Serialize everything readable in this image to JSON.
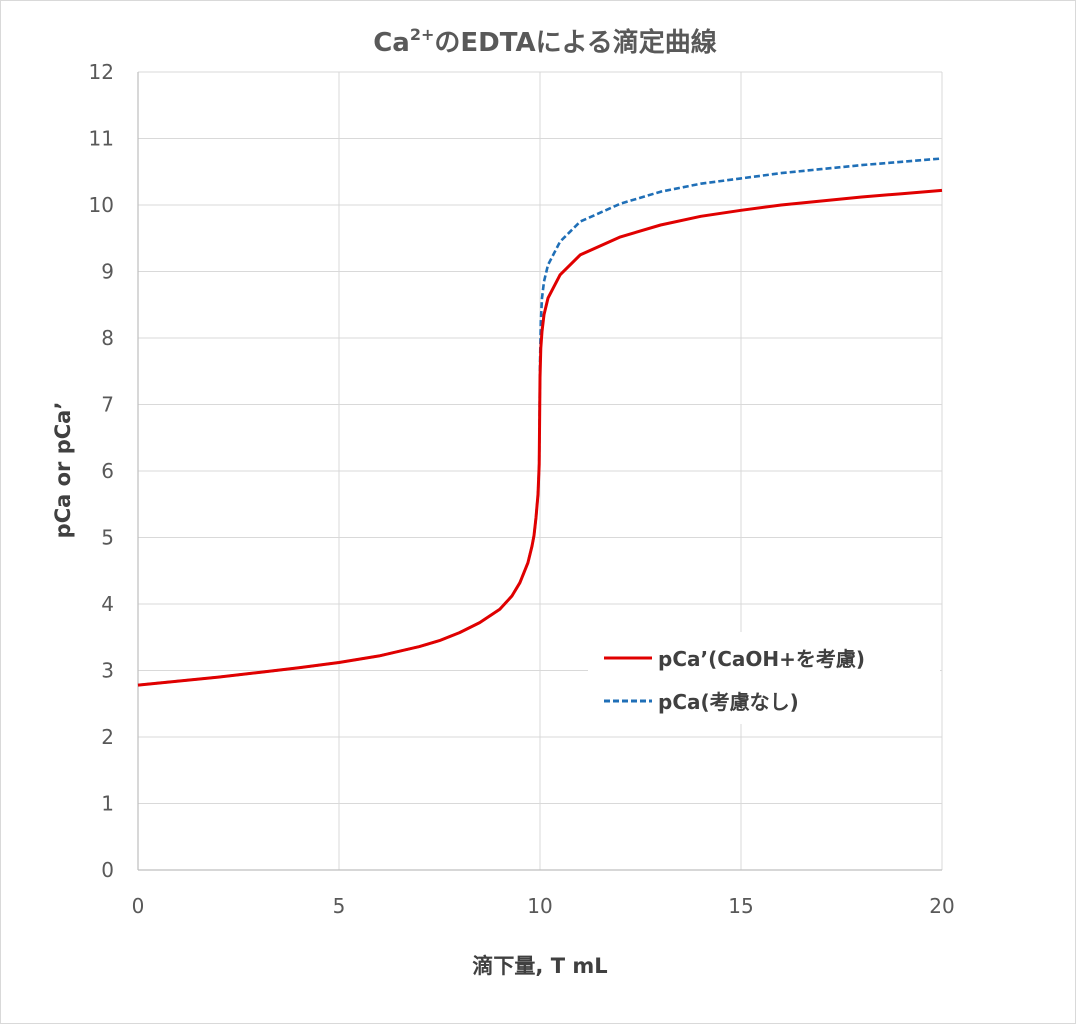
{
  "chart_data": {
    "type": "line",
    "title_main": "Ca",
    "title_sup": "2+",
    "title_rest": "のEDTAによる滴定曲線",
    "xlabel": "滴下量, T mL",
    "ylabel": "pCa or pCa’",
    "xlim": [
      0,
      20
    ],
    "ylim": [
      0,
      12
    ],
    "xticks": [
      "0",
      "5",
      "10",
      "15",
      "20"
    ],
    "yticks": [
      "0",
      "1",
      "2",
      "3",
      "4",
      "5",
      "6",
      "7",
      "8",
      "9",
      "10",
      "11",
      "12"
    ],
    "grid": true,
    "legend_position": "right-middle",
    "series": [
      {
        "name": "pCa’(CaOH+を考慮)",
        "color": "#e00000",
        "dash": "solid",
        "x": [
          0,
          1,
          2,
          3,
          4,
          5,
          6,
          7,
          7.5,
          8,
          8.5,
          9,
          9.3,
          9.5,
          9.7,
          9.8,
          9.85,
          9.9,
          9.95,
          9.98,
          10.0,
          10.02,
          10.05,
          10.1,
          10.2,
          10.5,
          11,
          12,
          13,
          14,
          15,
          16,
          17,
          18,
          19,
          20
        ],
        "values": [
          2.78,
          2.84,
          2.9,
          2.97,
          3.04,
          3.12,
          3.22,
          3.36,
          3.45,
          3.57,
          3.72,
          3.92,
          4.12,
          4.32,
          4.62,
          4.87,
          5.03,
          5.3,
          5.65,
          6.1,
          7.4,
          7.85,
          8.1,
          8.35,
          8.6,
          8.95,
          9.25,
          9.52,
          9.7,
          9.83,
          9.92,
          10.0,
          10.06,
          10.12,
          10.17,
          10.22
        ]
      },
      {
        "name": "pCa(考慮なし)",
        "color": "#1f6fb7",
        "dash": "dashed",
        "x": [
          0,
          1,
          2,
          3,
          4,
          5,
          6,
          7,
          7.5,
          8,
          8.5,
          9,
          9.3,
          9.5,
          9.7,
          9.8,
          9.85,
          9.9,
          9.95,
          9.98,
          10.0,
          10.02,
          10.05,
          10.1,
          10.2,
          10.5,
          11,
          12,
          13,
          14,
          15,
          16,
          17,
          18,
          19,
          20
        ],
        "values": [
          2.78,
          2.84,
          2.9,
          2.97,
          3.04,
          3.12,
          3.22,
          3.36,
          3.45,
          3.57,
          3.72,
          3.92,
          4.12,
          4.32,
          4.62,
          4.87,
          5.03,
          5.3,
          5.65,
          6.1,
          7.6,
          8.25,
          8.6,
          8.85,
          9.1,
          9.45,
          9.75,
          10.02,
          10.2,
          10.32,
          10.4,
          10.48,
          10.54,
          10.6,
          10.65,
          10.7
        ]
      }
    ]
  }
}
